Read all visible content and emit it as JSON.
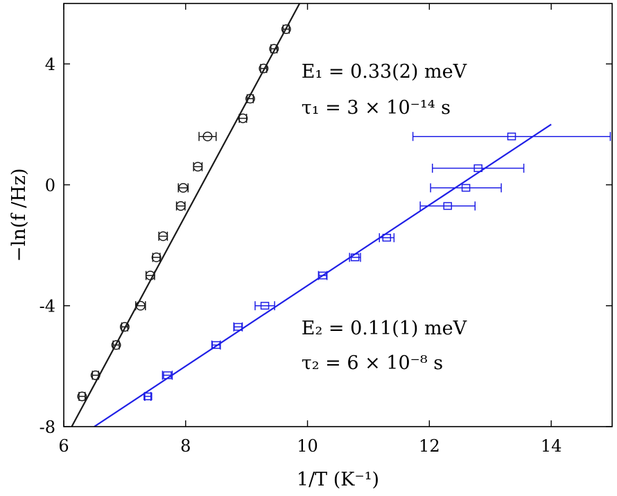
{
  "chart_data": {
    "type": "scatter",
    "xlabel": "1/T (K⁻¹)",
    "ylabel": "−ln(f /Hz)",
    "xlim": [
      6,
      15
    ],
    "ylim": [
      -8,
      6
    ],
    "xticks": [
      6,
      8,
      10,
      12,
      14
    ],
    "yticks": [
      -8,
      -4,
      0,
      4
    ],
    "grid": false,
    "series": [
      {
        "marker": "circle",
        "color": "#1a1a1a",
        "points": [
          {
            "x": 6.3,
            "y": -7.0,
            "xerr": 0.05
          },
          {
            "x": 6.52,
            "y": -6.3,
            "xerr": 0.05
          },
          {
            "x": 6.86,
            "y": -5.3,
            "xerr": 0.05
          },
          {
            "x": 7.0,
            "y": -4.7,
            "xerr": 0.05
          },
          {
            "x": 7.26,
            "y": -4.0,
            "xerr": 0.08
          },
          {
            "x": 7.42,
            "y": -3.0,
            "xerr": 0.07
          },
          {
            "x": 7.52,
            "y": -2.4,
            "xerr": 0.06
          },
          {
            "x": 7.63,
            "y": -1.7,
            "xerr": 0.07
          },
          {
            "x": 7.92,
            "y": -0.7,
            "xerr": 0.07
          },
          {
            "x": 7.96,
            "y": -0.1,
            "xerr": 0.08
          },
          {
            "x": 8.2,
            "y": 0.6,
            "xerr": 0.07
          },
          {
            "x": 8.36,
            "y": 1.6,
            "xerr": 0.14
          },
          {
            "x": 8.94,
            "y": 2.2,
            "xerr": 0.06
          },
          {
            "x": 9.06,
            "y": 2.85,
            "xerr": 0.05
          },
          {
            "x": 9.28,
            "y": 3.85,
            "xerr": 0.05
          },
          {
            "x": 9.45,
            "y": 4.5,
            "xerr": 0.05
          },
          {
            "x": 9.65,
            "y": 5.15,
            "xerr": 0.05
          }
        ],
        "fit": {
          "x": [
            6.13,
            9.87
          ],
          "y": [
            -8.0,
            6.0
          ]
        }
      },
      {
        "marker": "square",
        "color": "#1f1fe6",
        "points": [
          {
            "x": 7.38,
            "y": -7.0,
            "xerr": 0.05
          },
          {
            "x": 7.7,
            "y": -6.3,
            "xerr": 0.08
          },
          {
            "x": 8.5,
            "y": -5.3,
            "xerr": 0.07
          },
          {
            "x": 8.86,
            "y": -4.7,
            "xerr": 0.07
          },
          {
            "x": 9.3,
            "y": -4.0,
            "xerr": 0.16
          },
          {
            "x": 10.25,
            "y": -3.0,
            "xerr": 0.07
          },
          {
            "x": 10.78,
            "y": -2.4,
            "xerr": 0.09
          },
          {
            "x": 11.3,
            "y": -1.75,
            "xerr": 0.12
          },
          {
            "x": 12.3,
            "y": -0.7,
            "xerr": 0.45
          },
          {
            "x": 12.6,
            "y": -0.1,
            "xerr": 0.58
          },
          {
            "x": 12.8,
            "y": 0.55,
            "xerr": 0.75
          },
          {
            "x": 13.35,
            "y": 1.6,
            "xerr": 1.62
          }
        ],
        "fit": {
          "x": [
            6.5,
            14.0
          ],
          "y": [
            -8.0,
            2.0
          ]
        }
      }
    ],
    "annotations": [
      {
        "label": "E₁ = 0.33(2) meV",
        "x": 9.9,
        "y": 3.55
      },
      {
        "label": "τ₁ = 3 × 10⁻¹⁴ s",
        "x": 9.9,
        "y": 2.35
      },
      {
        "label": "E₂ = 0.11(1) meV",
        "x": 9.9,
        "y": -4.95
      },
      {
        "label": "τ₂ = 6 × 10⁻⁸ s",
        "x": 9.9,
        "y": -6.1
      }
    ]
  }
}
